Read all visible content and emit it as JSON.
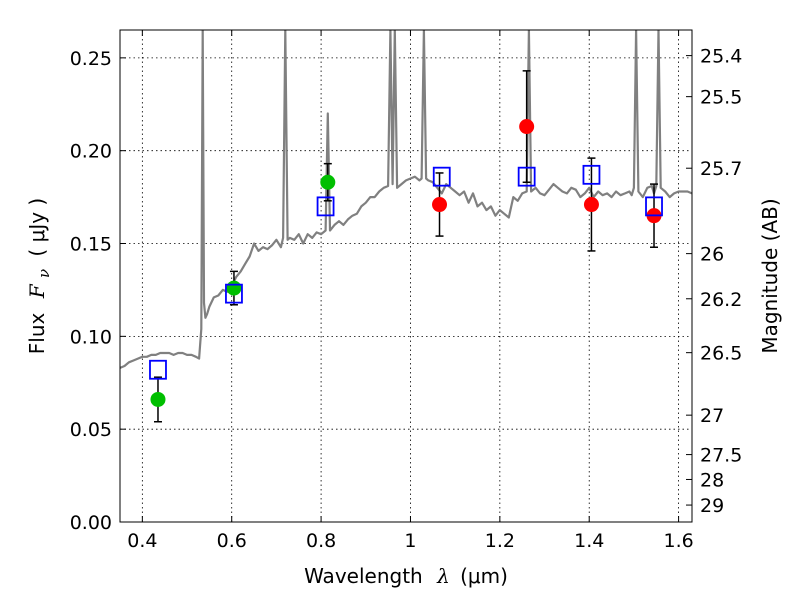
{
  "chart_data": {
    "type": "scatter",
    "xlabel_prefix": "Wavelength",
    "xlabel_symbol": "λ",
    "xlabel_unit": "(μm)",
    "ylabel_prefix": "Flux",
    "ylabel_symbol": "F",
    "ylabel_subscript": "ν",
    "ylabel_unit": "( μJy )",
    "y2label": "Magnitude (AB)",
    "xlim": [
      0.35,
      1.63
    ],
    "ylim": [
      0,
      0.265
    ],
    "xticks": [
      0.4,
      0.6,
      0.8,
      1.0,
      1.2,
      1.4,
      1.6
    ],
    "xtick_labels": [
      "0.4",
      "0.6",
      "0.8",
      "1",
      "1.2",
      "1.4",
      "1.6"
    ],
    "yticks": [
      0,
      0.05,
      0.1,
      0.15,
      0.2,
      0.25
    ],
    "ytick_labels": [
      "0.00",
      "0.05",
      "0.10",
      "0.15",
      "0.20",
      "0.25"
    ],
    "y2ticks": [
      25.4,
      25.5,
      25.7,
      26,
      26.2,
      26.5,
      27,
      27.5,
      28,
      29
    ],
    "y2tick_labels": [
      "25.4",
      "25.5",
      "25.7",
      "26",
      "26.2",
      "26.5",
      "27",
      "27.5",
      "28",
      "29"
    ],
    "grid": true,
    "colors": {
      "spectrum": "#808080",
      "observed_optical": "#00bf00",
      "observed_nir": "#ff0000",
      "model": "#0000ff",
      "errorbar": "#000000"
    },
    "series": [
      {
        "kind": "line",
        "x": [
          0.35,
          0.36,
          0.37,
          0.38,
          0.39,
          0.4,
          0.41,
          0.42,
          0.43,
          0.44,
          0.45,
          0.46,
          0.47,
          0.48,
          0.49,
          0.5,
          0.51,
          0.52,
          0.527,
          0.532,
          0.535,
          0.538,
          0.541,
          0.545,
          0.55,
          0.56,
          0.57,
          0.58,
          0.59,
          0.6,
          0.61,
          0.62,
          0.63,
          0.64,
          0.65,
          0.66,
          0.67,
          0.68,
          0.69,
          0.7,
          0.71,
          0.715,
          0.72,
          0.725,
          0.73,
          0.74,
          0.75,
          0.76,
          0.77,
          0.78,
          0.79,
          0.8,
          0.81,
          0.815,
          0.82,
          0.83,
          0.84,
          0.85,
          0.86,
          0.87,
          0.88,
          0.89,
          0.9,
          0.91,
          0.92,
          0.93,
          0.94,
          0.95,
          0.955,
          0.96,
          0.965,
          0.97,
          0.98,
          0.99,
          1.0,
          1.01,
          1.02,
          1.025,
          1.03,
          1.035,
          1.04,
          1.05,
          1.06,
          1.07,
          1.08,
          1.09,
          1.1,
          1.11,
          1.12,
          1.13,
          1.14,
          1.15,
          1.16,
          1.17,
          1.18,
          1.19,
          1.2,
          1.21,
          1.22,
          1.23,
          1.24,
          1.25,
          1.26,
          1.265,
          1.27,
          1.28,
          1.29,
          1.3,
          1.31,
          1.32,
          1.33,
          1.34,
          1.35,
          1.36,
          1.37,
          1.38,
          1.39,
          1.4,
          1.41,
          1.42,
          1.43,
          1.44,
          1.45,
          1.46,
          1.47,
          1.48,
          1.49,
          1.495,
          1.5,
          1.505,
          1.51,
          1.52,
          1.53,
          1.54,
          1.545,
          1.55,
          1.555,
          1.56,
          1.57,
          1.58,
          1.59,
          1.6,
          1.61,
          1.62,
          1.63
        ],
        "y": [
          0.083,
          0.084,
          0.086,
          0.087,
          0.088,
          0.089,
          0.089,
          0.09,
          0.09,
          0.091,
          0.091,
          0.091,
          0.09,
          0.091,
          0.091,
          0.09,
          0.09,
          0.089,
          0.088,
          0.104,
          0.265,
          0.118,
          0.11,
          0.112,
          0.116,
          0.121,
          0.122,
          0.125,
          0.124,
          0.127,
          0.132,
          0.135,
          0.139,
          0.143,
          0.15,
          0.146,
          0.148,
          0.147,
          0.149,
          0.152,
          0.148,
          0.153,
          0.265,
          0.152,
          0.153,
          0.152,
          0.155,
          0.15,
          0.155,
          0.153,
          0.156,
          0.155,
          0.157,
          0.22,
          0.157,
          0.16,
          0.162,
          0.16,
          0.163,
          0.165,
          0.166,
          0.17,
          0.172,
          0.175,
          0.175,
          0.178,
          0.18,
          0.181,
          0.265,
          0.182,
          0.265,
          0.18,
          0.182,
          0.184,
          0.185,
          0.186,
          0.184,
          0.185,
          0.265,
          0.185,
          0.184,
          0.183,
          0.18,
          0.177,
          0.182,
          0.18,
          0.178,
          0.176,
          0.178,
          0.172,
          0.177,
          0.17,
          0.172,
          0.168,
          0.17,
          0.165,
          0.168,
          0.166,
          0.164,
          0.175,
          0.173,
          0.177,
          0.178,
          0.265,
          0.178,
          0.18,
          0.177,
          0.176,
          0.179,
          0.182,
          0.18,
          0.178,
          0.177,
          0.18,
          0.179,
          0.175,
          0.177,
          0.18,
          0.175,
          0.178,
          0.176,
          0.177,
          0.175,
          0.178,
          0.176,
          0.177,
          0.178,
          0.176,
          0.18,
          0.265,
          0.178,
          0.175,
          0.18,
          0.181,
          0.177,
          0.181,
          0.265,
          0.18,
          0.178,
          0.175,
          0.177,
          0.178,
          0.178,
          0.178,
          0.177
        ]
      },
      {
        "kind": "points",
        "marker": "circle",
        "color_key": "observed_optical",
        "x": [
          0.435,
          0.605,
          0.815
        ],
        "y": [
          0.066,
          0.126,
          0.183
        ],
        "yerr": [
          0.012,
          0.009,
          0.01
        ]
      },
      {
        "kind": "points",
        "marker": "circle",
        "color_key": "observed_nir",
        "x": [
          1.065,
          1.26,
          1.405,
          1.545
        ],
        "y": [
          0.171,
          0.213,
          0.171,
          0.165
        ],
        "yerr": [
          0.017,
          0.03,
          0.025,
          0.017
        ]
      },
      {
        "kind": "points",
        "marker": "square",
        "color_key": "model",
        "x": [
          0.435,
          0.605,
          0.81,
          1.07,
          1.26,
          1.405,
          1.545
        ],
        "y": [
          0.082,
          0.123,
          0.17,
          0.186,
          0.186,
          0.187,
          0.17
        ]
      }
    ]
  }
}
